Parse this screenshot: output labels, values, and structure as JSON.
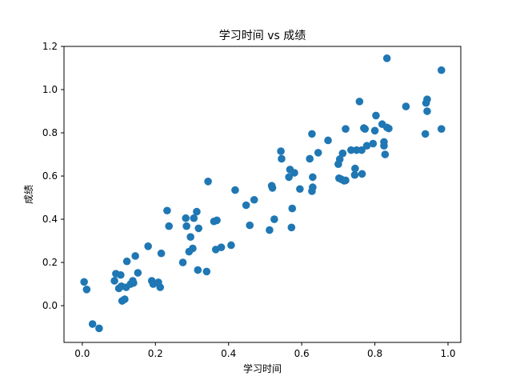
{
  "chart_data": {
    "type": "scatter",
    "title": "学习时间 vs 成绩",
    "xlabel": "学习时间",
    "ylabel": "成绩",
    "xlim": [
      -0.05,
      1.035
    ],
    "ylim": [
      -0.17,
      1.2
    ],
    "xticks": [
      0.0,
      0.2,
      0.4,
      0.6,
      0.8,
      1.0
    ],
    "xtick_labels": [
      "0.0",
      "0.2",
      "0.4",
      "0.6",
      "0.8",
      "1.0"
    ],
    "yticks": [
      0.0,
      0.2,
      0.4,
      0.6,
      0.8,
      1.0,
      1.2
    ],
    "ytick_labels": [
      "0.0",
      "0.2",
      "0.4",
      "0.6",
      "0.8",
      "1.0",
      "1.2"
    ],
    "grid": false,
    "marker_color": "#1f77b4",
    "series": [
      {
        "points": [
          [
            0.005,
            0.11
          ],
          [
            0.012,
            0.075
          ],
          [
            0.028,
            -0.085
          ],
          [
            0.046,
            -0.105
          ],
          [
            0.088,
            0.115
          ],
          [
            0.092,
            0.148
          ],
          [
            0.1,
            0.08
          ],
          [
            0.105,
            0.142
          ],
          [
            0.107,
            0.09
          ],
          [
            0.109,
            0.022
          ],
          [
            0.116,
            0.03
          ],
          [
            0.12,
            0.085
          ],
          [
            0.122,
            0.205
          ],
          [
            0.132,
            0.1
          ],
          [
            0.138,
            0.115
          ],
          [
            0.14,
            0.105
          ],
          [
            0.145,
            0.23
          ],
          [
            0.152,
            0.152
          ],
          [
            0.18,
            0.275
          ],
          [
            0.19,
            0.115
          ],
          [
            0.194,
            0.1
          ],
          [
            0.208,
            0.108
          ],
          [
            0.213,
            0.085
          ],
          [
            0.216,
            0.242
          ],
          [
            0.232,
            0.44
          ],
          [
            0.237,
            0.368
          ],
          [
            0.275,
            0.2
          ],
          [
            0.283,
            0.405
          ],
          [
            0.285,
            0.368
          ],
          [
            0.292,
            0.25
          ],
          [
            0.296,
            0.318
          ],
          [
            0.302,
            0.265
          ],
          [
            0.305,
            0.405
          ],
          [
            0.313,
            0.435
          ],
          [
            0.316,
            0.165
          ],
          [
            0.318,
            0.358
          ],
          [
            0.34,
            0.158
          ],
          [
            0.344,
            0.575
          ],
          [
            0.36,
            0.39
          ],
          [
            0.365,
            0.26
          ],
          [
            0.368,
            0.395
          ],
          [
            0.38,
            0.27
          ],
          [
            0.407,
            0.28
          ],
          [
            0.418,
            0.535
          ],
          [
            0.448,
            0.465
          ],
          [
            0.458,
            0.372
          ],
          [
            0.47,
            0.49
          ],
          [
            0.512,
            0.35
          ],
          [
            0.518,
            0.555
          ],
          [
            0.52,
            0.545
          ],
          [
            0.525,
            0.4
          ],
          [
            0.543,
            0.715
          ],
          [
            0.545,
            0.68
          ],
          [
            0.565,
            0.595
          ],
          [
            0.568,
            0.63
          ],
          [
            0.572,
            0.362
          ],
          [
            0.574,
            0.45
          ],
          [
            0.58,
            0.615
          ],
          [
            0.595,
            0.54
          ],
          [
            0.622,
            0.68
          ],
          [
            0.628,
            0.795
          ],
          [
            0.628,
            0.53
          ],
          [
            0.63,
            0.595
          ],
          [
            0.63,
            0.548
          ],
          [
            0.645,
            0.708
          ],
          [
            0.672,
            0.765
          ],
          [
            0.7,
            0.655
          ],
          [
            0.702,
            0.59
          ],
          [
            0.704,
            0.678
          ],
          [
            0.708,
            0.585
          ],
          [
            0.712,
            0.705
          ],
          [
            0.716,
            0.578
          ],
          [
            0.72,
            0.58
          ],
          [
            0.72,
            0.818
          ],
          [
            0.735,
            0.72
          ],
          [
            0.745,
            0.605
          ],
          [
            0.746,
            0.635
          ],
          [
            0.75,
            0.72
          ],
          [
            0.758,
            0.945
          ],
          [
            0.764,
            0.72
          ],
          [
            0.765,
            0.61
          ],
          [
            0.77,
            0.822
          ],
          [
            0.773,
            0.818
          ],
          [
            0.778,
            0.74
          ],
          [
            0.795,
            0.75
          ],
          [
            0.8,
            0.81
          ],
          [
            0.803,
            0.88
          ],
          [
            0.82,
            0.84
          ],
          [
            0.825,
            0.74
          ],
          [
            0.825,
            0.758
          ],
          [
            0.828,
            0.7
          ],
          [
            0.833,
            1.145
          ],
          [
            0.838,
            0.82
          ],
          [
            0.833,
            0.825
          ],
          [
            0.885,
            0.922
          ],
          [
            0.938,
            0.795
          ],
          [
            0.94,
            0.938
          ],
          [
            0.943,
            0.955
          ],
          [
            0.943,
            0.9
          ],
          [
            0.982,
            1.09
          ],
          [
            0.982,
            0.818
          ]
        ]
      }
    ]
  }
}
